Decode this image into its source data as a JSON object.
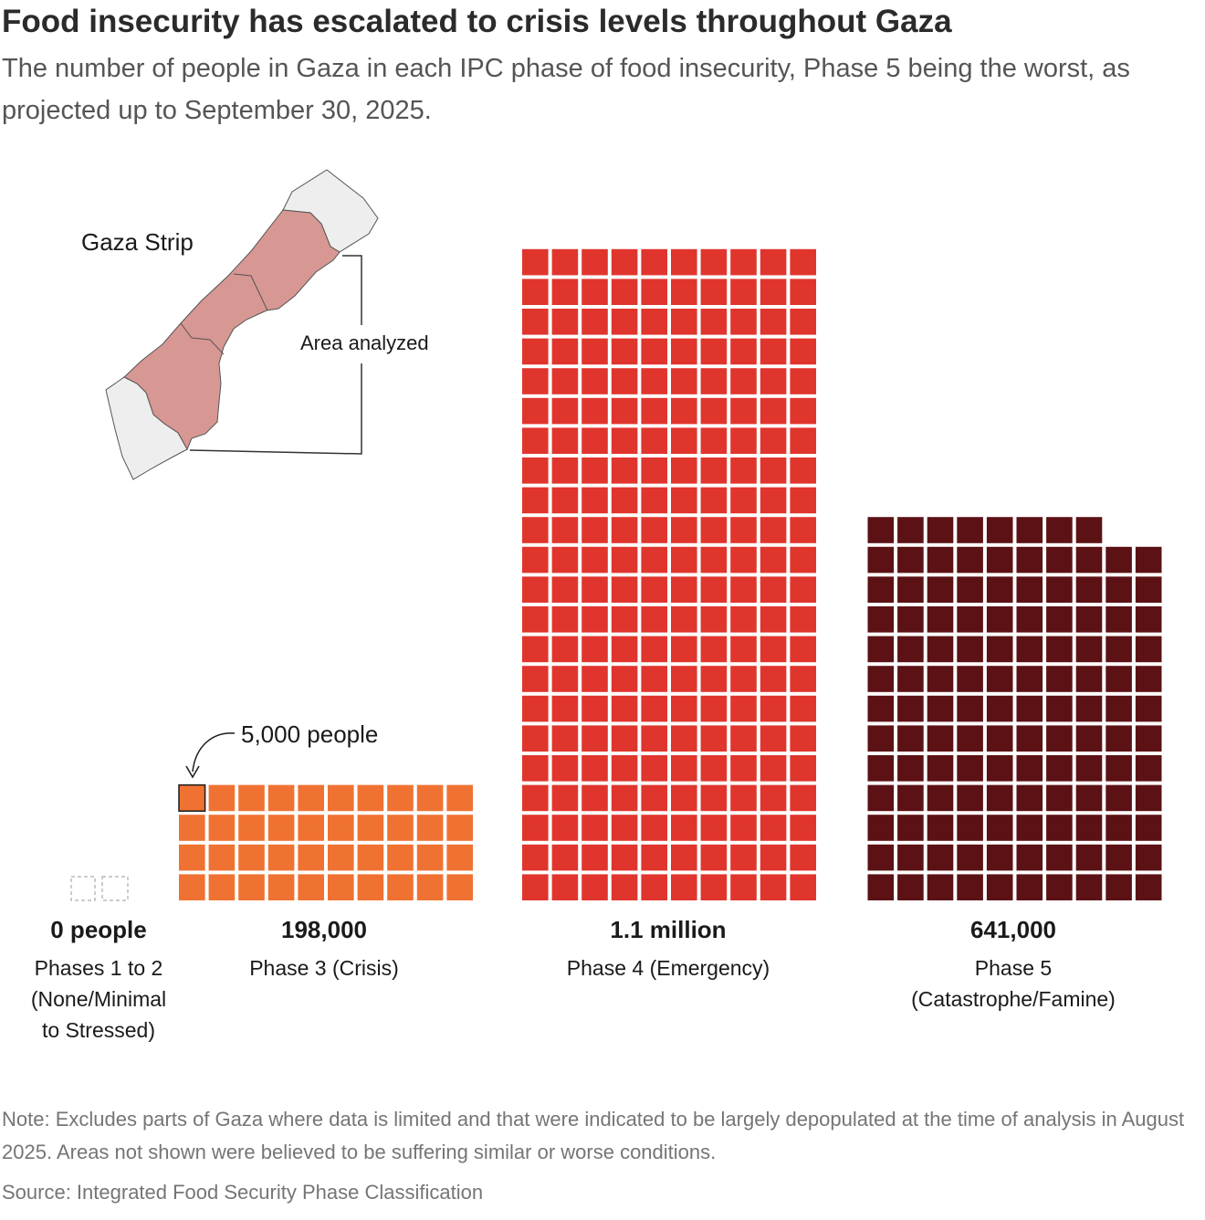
{
  "title": "Food insecurity has escalated to crisis levels throughout Gaza",
  "subtitle": "The number of people in Gaza in each IPC phase of food insecurity, Phase 5 being the worst, as projected up to September 30, 2025.",
  "map": {
    "label": "Gaza Strip",
    "area_label": "Area analyzed"
  },
  "unit_annotation": "5,000 people",
  "note": "Note: Excludes parts of Gaza where data is limited and that were indicated to be largely depopulated at the time of analysis in August 2025. Areas not shown were believed to be suffering similar or worse conditions.",
  "source": "Source: Integrated Food Security Phase Classification",
  "colors": {
    "phase1_2": "#bbbbbb",
    "phase3": "#f07232",
    "phase4": "#e0352d",
    "phase5": "#5c1215",
    "map_analyzed": "#d79792",
    "map_other": "#eeeeee"
  },
  "chart_data": {
    "type": "waffle",
    "unit_people": 5000,
    "categories": [
      {
        "value_label": "0 people",
        "label_lines": [
          "Phases 1 to 2",
          "(None/Minimal",
          "to Stressed)"
        ],
        "people": 0,
        "squares": 0
      },
      {
        "value_label": "198,000",
        "label_lines": [
          "Phase 3 (Crisis)"
        ],
        "people": 198000,
        "squares": 40
      },
      {
        "value_label": "1.1 million",
        "label_lines": [
          "Phase 4 (Emergency)"
        ],
        "people": 1100000,
        "squares": 220
      },
      {
        "value_label": "641,000",
        "label_lines": [
          "Phase 5",
          "(Catastrophe/Famine)"
        ],
        "people": 641000,
        "squares": 128
      }
    ]
  }
}
